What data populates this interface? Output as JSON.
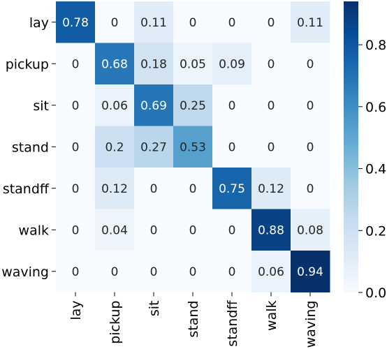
{
  "chart_data": {
    "type": "heatmap",
    "title": "",
    "xlabel": "",
    "ylabel": "",
    "rows": [
      "lay",
      "pickup",
      "sit",
      "stand",
      "standff",
      "walk",
      "waving"
    ],
    "columns": [
      "lay",
      "pickup",
      "sit",
      "stand",
      "standff",
      "walk",
      "waving"
    ],
    "values": [
      [
        0.78,
        0,
        0.11,
        0,
        0,
        0,
        0.11
      ],
      [
        0,
        0.68,
        0.18,
        0.05,
        0.09,
        0,
        0
      ],
      [
        0,
        0.06,
        0.69,
        0.25,
        0,
        0,
        0
      ],
      [
        0,
        0.2,
        0.27,
        0.53,
        0,
        0,
        0
      ],
      [
        0,
        0.12,
        0,
        0,
        0.75,
        0.12,
        0
      ],
      [
        0,
        0.04,
        0,
        0,
        0,
        0.88,
        0.08
      ],
      [
        0,
        0,
        0,
        0,
        0,
        0.06,
        0.94
      ]
    ],
    "colorbar": {
      "min": 0.0,
      "max": 0.94,
      "ticks": [
        0.0,
        0.2,
        0.4,
        0.6,
        0.8
      ],
      "tick_labels": [
        "0.0",
        "0.2",
        "0.4",
        "0.6",
        "0.8"
      ],
      "colormap": "Blues",
      "colors": [
        "#f7fbff",
        "#deebf7",
        "#c6dbef",
        "#9ecae1",
        "#6baed6",
        "#4292c6",
        "#2171b5",
        "#08519c",
        "#08306b"
      ]
    }
  }
}
